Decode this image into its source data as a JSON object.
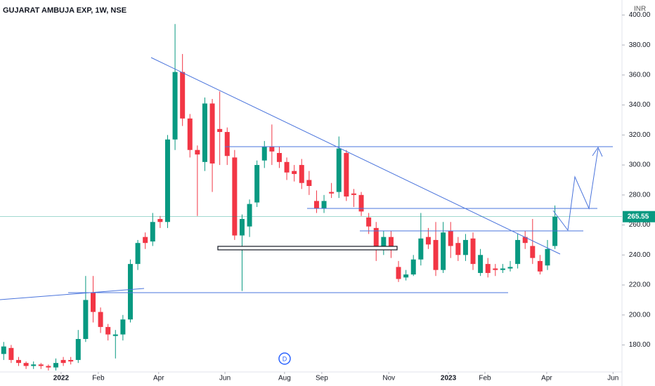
{
  "chart_data": {
    "type": "candlestick",
    "title": "GUJARAT AMBUJA EXP, 1W, NSE",
    "y_label": "INR",
    "open": [
      174,
      178,
      170,
      168,
      166,
      167,
      166,
      165,
      170,
      170,
      170,
      184,
      215,
      202,
      192,
      186,
      187,
      197,
      234,
      252,
      249,
      264,
      262,
      317,
      362,
      331,
      310,
      302,
      341,
      324,
      322,
      305,
      253,
      259,
      275,
      303,
      312,
      308,
      302,
      296,
      300,
      290,
      276,
      271,
      282,
      282,
      308,
      281,
      280,
      265,
      258,
      244,
      252,
      232,
      225,
      227,
      237,
      252,
      250,
      230,
      256,
      248,
      240,
      251,
      228,
      234,
      231,
      230,
      231,
      234,
      252,
      246,
      236,
      233,
      246
    ],
    "high": [
      182,
      180,
      172,
      169,
      169,
      168,
      167,
      171,
      172,
      172,
      190,
      226,
      226,
      205,
      194,
      190,
      200,
      237,
      250,
      255,
      268,
      266,
      320,
      394,
      374,
      334,
      313,
      345,
      344,
      349,
      325,
      310,
      267,
      277,
      303,
      316,
      327,
      312,
      305,
      300,
      304,
      296,
      283,
      280,
      288,
      319,
      310,
      284,
      282,
      268,
      262,
      256,
      256,
      236,
      230,
      240,
      268,
      258,
      262,
      262,
      262,
      252,
      254,
      255,
      244,
      238,
      234,
      234,
      236,
      254,
      256,
      264,
      240,
      250,
      273
    ],
    "low": [
      170,
      168,
      166,
      164,
      164,
      164,
      163,
      163,
      166,
      167,
      168,
      182,
      195,
      188,
      183,
      171,
      183,
      195,
      230,
      244,
      246,
      258,
      258,
      310,
      326,
      305,
      266,
      296,
      282,
      300,
      300,
      250,
      216,
      252,
      272,
      298,
      300,
      298,
      290,
      289,
      284,
      280,
      268,
      268,
      278,
      278,
      276,
      272,
      266,
      254,
      236,
      240,
      238,
      222,
      223,
      226,
      233,
      244,
      226,
      228,
      238,
      236,
      236,
      230,
      226,
      225,
      226,
      228,
      229,
      231,
      244,
      234,
      227,
      230,
      244
    ],
    "close": [
      179,
      170,
      168,
      166,
      167,
      166,
      165,
      168,
      168,
      169,
      184,
      210,
      202,
      192,
      187,
      187,
      197,
      234,
      248,
      248,
      262,
      262,
      317,
      362,
      331,
      310,
      307,
      341,
      301,
      322,
      306,
      253,
      264,
      274,
      300,
      312,
      309,
      302,
      295,
      294,
      288,
      286,
      271,
      276,
      281,
      311,
      279,
      280,
      269,
      259,
      244,
      252,
      244,
      224,
      227,
      237,
      251,
      247,
      230,
      255,
      246,
      240,
      250,
      234,
      240,
      228,
      230,
      231,
      232,
      250,
      248,
      238,
      229,
      244,
      265.55
    ],
    "colors": {
      "up": "#089981",
      "down": "#f23645"
    },
    "last_price": 265.55,
    "ylim": [
      162,
      410
    ],
    "yticks": [
      {
        "value": 180,
        "label": "180.00"
      },
      {
        "value": 200,
        "label": "200.00"
      },
      {
        "value": 220,
        "label": "220.00"
      },
      {
        "value": 240,
        "label": "240.00"
      },
      {
        "value": 260,
        "label": "260.00"
      },
      {
        "value": 280,
        "label": "280.00"
      },
      {
        "value": 300,
        "label": "300.00"
      },
      {
        "value": 320,
        "label": "320.00"
      },
      {
        "value": 340,
        "label": "340.00"
      },
      {
        "value": 360,
        "label": "360.00"
      },
      {
        "value": 380,
        "label": "380.00"
      },
      {
        "value": 400,
        "label": "400.00"
      }
    ],
    "xlim": [
      -0.5,
      83
    ],
    "xticks": [
      {
        "value": 7.7,
        "label": "2022"
      },
      {
        "value": 12.7,
        "label": "Feb"
      },
      {
        "value": 20.8,
        "label": "Apr"
      },
      {
        "value": 29.7,
        "label": "Jun"
      },
      {
        "value": 37.7,
        "label": "Aug"
      },
      {
        "value": 42.7,
        "label": "Sep"
      },
      {
        "value": 51.7,
        "label": "Nov"
      },
      {
        "value": 59.7,
        "label": "2023"
      },
      {
        "value": 64.6,
        "label": "Feb"
      },
      {
        "value": 72.9,
        "label": "Apr"
      },
      {
        "value": 81.8,
        "label": "Jun"
      }
    ]
  }
}
